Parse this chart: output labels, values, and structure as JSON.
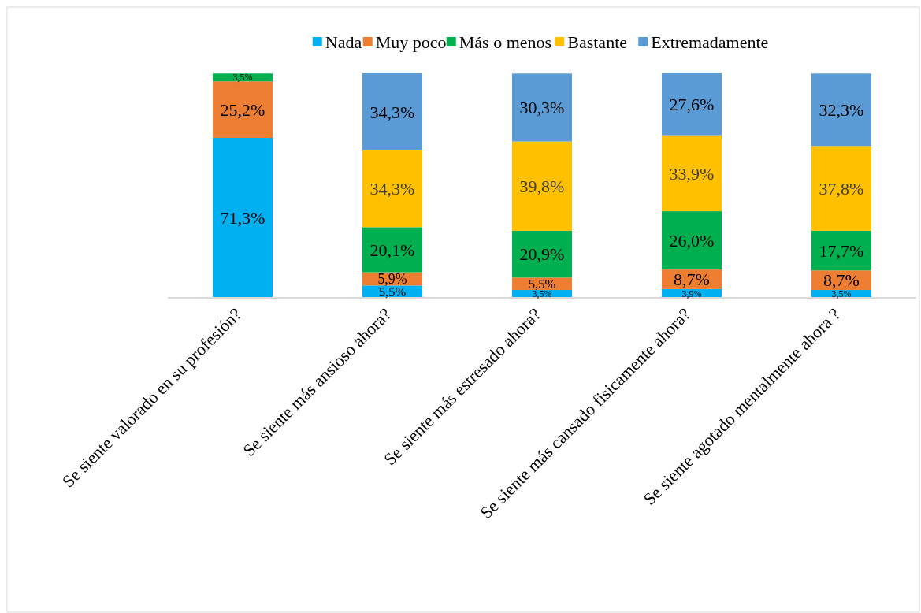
{
  "chart_data": {
    "type": "bar",
    "stacked": true,
    "legend": "top",
    "data_labels": false,
    "categories": [
      "Se siente valorado en su profesión?",
      "Se siente más ansioso ahora?",
      "Se siente más estresado ahora?",
      "Se siente más cansado fisicamente ahora?",
      "Se siente agotado mentalmente ahora ?"
    ],
    "series": [
      {
        "name": "Nada",
        "color": "#00b0f0",
        "values": [
          71.3,
          5.5,
          3.5,
          3.9,
          3.5
        ],
        "value_labels": [
          "71,3%",
          "5,5%",
          "3,5%",
          "3,9%",
          "3,5%"
        ]
      },
      {
        "name": "Muy poco",
        "color": "#ed7d31",
        "values": [
          25.2,
          5.9,
          5.5,
          8.7,
          8.7
        ],
        "value_labels": [
          "25,2%",
          "5,9%",
          "5,5%",
          "8,7%",
          "8,7%"
        ]
      },
      {
        "name": "Más o menos",
        "color": "#00b050",
        "values": [
          3.5,
          20.1,
          20.9,
          26.0,
          17.7
        ],
        "value_labels": [
          "3,5%",
          "20,1%",
          "20,9%",
          "26,0%",
          "17,7%"
        ]
      },
      {
        "name": "Bastante",
        "color": "#ffc000",
        "values": [
          null,
          34.3,
          39.8,
          33.9,
          37.8
        ],
        "value_labels": [
          null,
          "34,3%",
          "39,8%",
          "33,9%",
          "37,8%"
        ]
      },
      {
        "name": "Extremadamente",
        "color": "#5b9bd5",
        "values": [
          null,
          34.3,
          30.3,
          27.6,
          32.3
        ],
        "value_labels": [
          null,
          "34,3%",
          "30,3%",
          "27,6%",
          "32,3%"
        ]
      }
    ]
  }
}
